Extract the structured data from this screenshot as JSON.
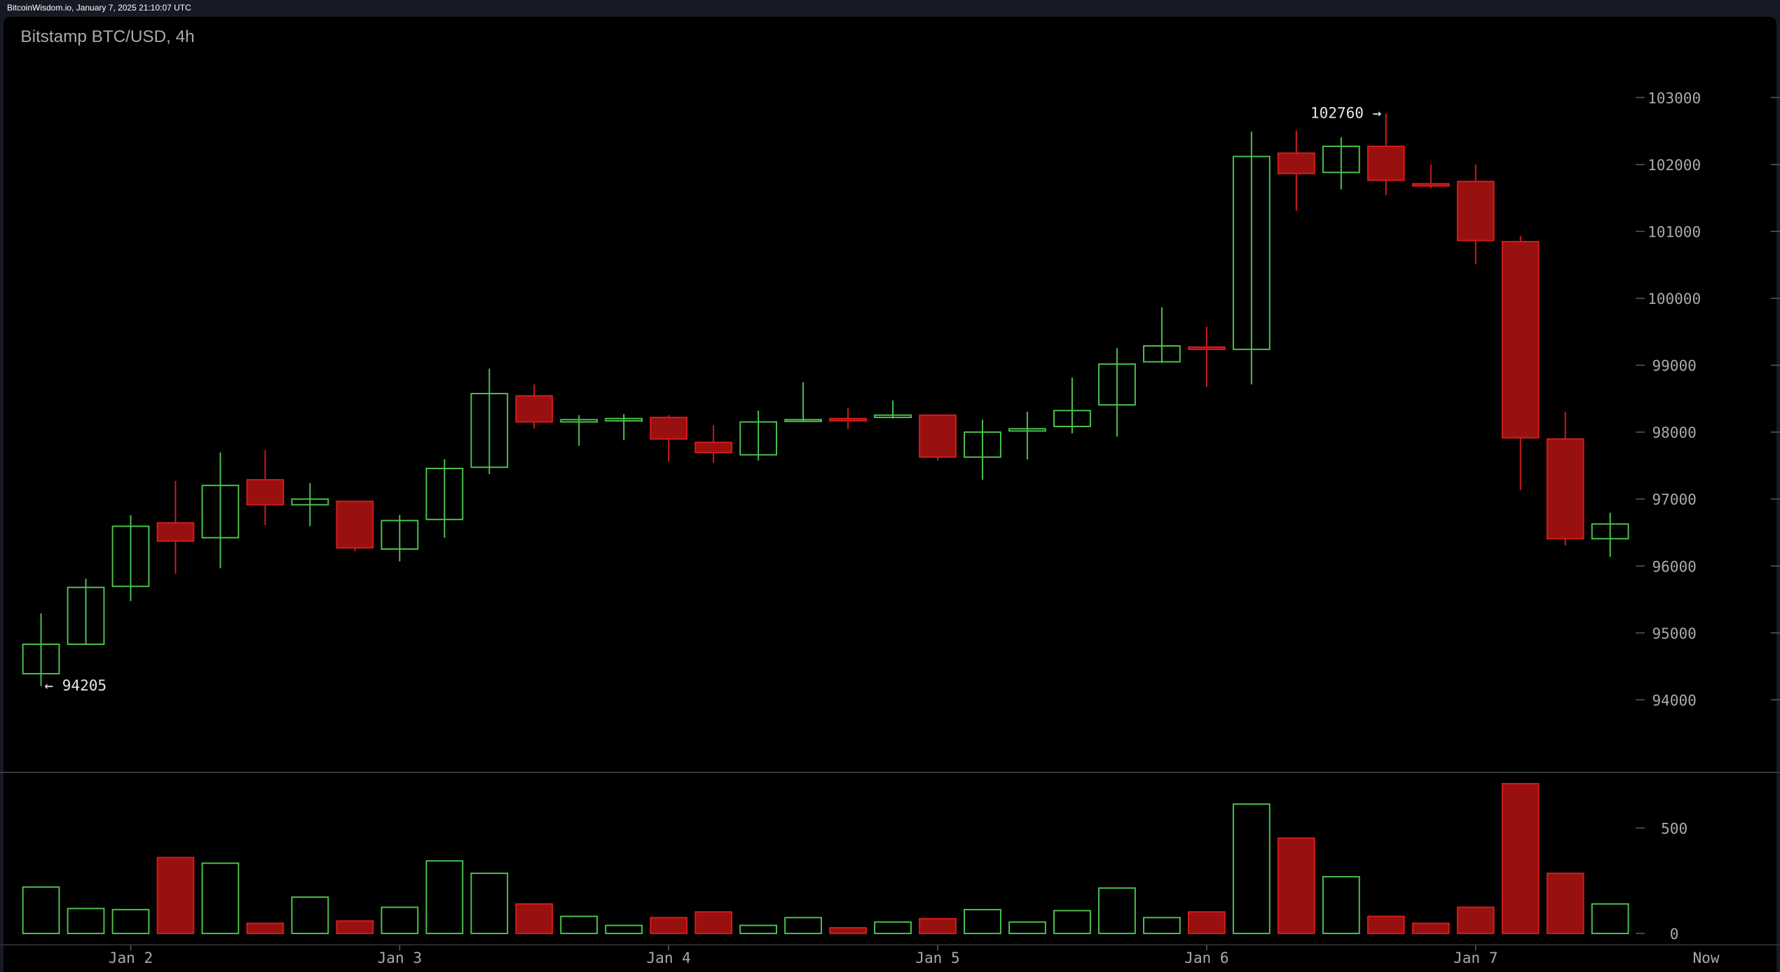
{
  "header": {
    "source_line": "BitcoinWisdom.io, January 7, 2025 21:10:07 UTC"
  },
  "colors": {
    "up": "#4cc44c",
    "down_fill": "#991010",
    "down_stroke": "#d41c1c",
    "background": "#000000",
    "frame": "#151a24",
    "axis_text": "#aaaaaa"
  },
  "chart_data": {
    "type": "candlestick",
    "title": "Bitstamp BTC/USD, 4h",
    "price_axis": {
      "ticks": [
        103000,
        102000,
        101000,
        100000,
        99000,
        98000,
        97000,
        96000,
        95000,
        94000
      ],
      "tick_labels": [
        "103000",
        "102000",
        "101000",
        "100000",
        "99000",
        "98000",
        "97000",
        "96000",
        "95000",
        "94000"
      ],
      "ylim": [
        92915,
        104200
      ]
    },
    "volume_axis": {
      "ticks": [
        0,
        500
      ],
      "tick_labels": [
        "0",
        "500"
      ],
      "ylim": [
        0,
        763
      ]
    },
    "x_axis": {
      "labels": [
        {
          "label": "Jan 2",
          "candle_index": 2
        },
        {
          "label": "Jan 3",
          "candle_index": 8
        },
        {
          "label": "Jan 4",
          "candle_index": 14
        },
        {
          "label": "Jan 5",
          "candle_index": 20
        },
        {
          "label": "Jan 6",
          "candle_index": 26
        },
        {
          "label": "Jan 7",
          "candle_index": 32
        }
      ],
      "now_label": "Now"
    },
    "annotations": {
      "high": {
        "value": 102760,
        "text": "102760 →",
        "candle_index": 30
      },
      "low": {
        "value": 94205,
        "text": "← 94205",
        "candle_index": 0
      }
    },
    "candles": [
      {
        "o": 94390,
        "h": 95290,
        "l": 94205,
        "c": 94830,
        "v": 220
      },
      {
        "o": 94830,
        "h": 95810,
        "l": 94820,
        "c": 95680,
        "v": 118
      },
      {
        "o": 95695,
        "h": 96760,
        "l": 95475,
        "c": 96593,
        "v": 113
      },
      {
        "o": 96644,
        "h": 97271,
        "l": 95881,
        "c": 96372,
        "v": 360
      },
      {
        "o": 96423,
        "h": 97695,
        "l": 95966,
        "c": 97203,
        "v": 333
      },
      {
        "o": 97288,
        "h": 97729,
        "l": 96610,
        "c": 96915,
        "v": 48
      },
      {
        "o": 96915,
        "h": 97237,
        "l": 96593,
        "c": 97000,
        "v": 172
      },
      {
        "o": 96966,
        "h": 96966,
        "l": 96220,
        "c": 96270,
        "v": 59
      },
      {
        "o": 96253,
        "h": 96763,
        "l": 96068,
        "c": 96678,
        "v": 124
      },
      {
        "o": 96695,
        "h": 97593,
        "l": 96423,
        "c": 97457,
        "v": 344
      },
      {
        "o": 97475,
        "h": 98949,
        "l": 97373,
        "c": 98576,
        "v": 285
      },
      {
        "o": 98542,
        "h": 98712,
        "l": 98050,
        "c": 98152,
        "v": 140
      },
      {
        "o": 98152,
        "h": 98254,
        "l": 97796,
        "c": 98186,
        "v": 81
      },
      {
        "o": 98169,
        "h": 98271,
        "l": 97881,
        "c": 98203,
        "v": 38
      },
      {
        "o": 98220,
        "h": 98254,
        "l": 97559,
        "c": 97898,
        "v": 75
      },
      {
        "o": 97847,
        "h": 98102,
        "l": 97542,
        "c": 97695,
        "v": 102
      },
      {
        "o": 97661,
        "h": 98322,
        "l": 97576,
        "c": 98152,
        "v": 38
      },
      {
        "o": 98169,
        "h": 98746,
        "l": 98152,
        "c": 98186,
        "v": 75
      },
      {
        "o": 98203,
        "h": 98356,
        "l": 98050,
        "c": 98169,
        "v": 27
      },
      {
        "o": 98220,
        "h": 98474,
        "l": 98203,
        "c": 98254,
        "v": 54
      },
      {
        "o": 98254,
        "h": 98254,
        "l": 97576,
        "c": 97627,
        "v": 70
      },
      {
        "o": 97627,
        "h": 98186,
        "l": 97288,
        "c": 98000,
        "v": 113
      },
      {
        "o": 98017,
        "h": 98305,
        "l": 97593,
        "c": 98050,
        "v": 54
      },
      {
        "o": 98085,
        "h": 98813,
        "l": 97983,
        "c": 98322,
        "v": 108
      },
      {
        "o": 98407,
        "h": 99254,
        "l": 97932,
        "c": 99017,
        "v": 215
      },
      {
        "o": 99051,
        "h": 99864,
        "l": 99034,
        "c": 99288,
        "v": 75
      },
      {
        "o": 99271,
        "h": 99576,
        "l": 98678,
        "c": 99237,
        "v": 102
      },
      {
        "o": 99237,
        "h": 102492,
        "l": 98712,
        "c": 102119,
        "v": 613
      },
      {
        "o": 102170,
        "h": 102508,
        "l": 101305,
        "c": 101864,
        "v": 452
      },
      {
        "o": 101881,
        "h": 102407,
        "l": 101627,
        "c": 102271,
        "v": 269
      },
      {
        "o": 102271,
        "h": 102760,
        "l": 101542,
        "c": 101763,
        "v": 81
      },
      {
        "o": 101712,
        "h": 102000,
        "l": 101644,
        "c": 101678,
        "v": 48
      },
      {
        "o": 101746,
        "h": 102000,
        "l": 100508,
        "c": 100864,
        "v": 124
      },
      {
        "o": 100847,
        "h": 100932,
        "l": 97135,
        "c": 97915,
        "v": 710
      },
      {
        "o": 97898,
        "h": 98305,
        "l": 96305,
        "c": 96407,
        "v": 285
      },
      {
        "o": 96407,
        "h": 96796,
        "l": 96136,
        "c": 96627,
        "v": 140
      }
    ]
  }
}
